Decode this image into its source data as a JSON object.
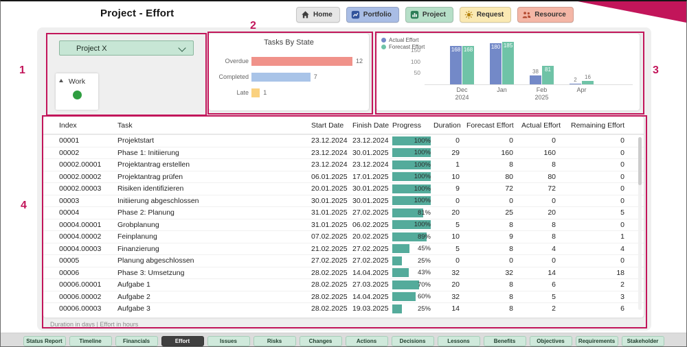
{
  "header": {
    "title": "Project - Effort",
    "ribbon_color": "#c2155a",
    "nav": [
      {
        "label": "Home",
        "icon": "home-icon",
        "bg": "#e6e6e6"
      },
      {
        "label": "Portfolio",
        "icon": "portfolio-icon",
        "bg": "#a9bde5"
      },
      {
        "label": "Project",
        "icon": "project-icon",
        "bg": "#b6dfc8"
      },
      {
        "label": "Request",
        "icon": "request-icon",
        "bg": "#fae9b3"
      },
      {
        "label": "Resource",
        "icon": "resource-icon",
        "bg": "#f4b6a6"
      }
    ]
  },
  "filters": {
    "project_selector": {
      "value": "Project X"
    },
    "work_card": {
      "label": "Work",
      "status_color": "#2f9e41"
    }
  },
  "chart_data": [
    {
      "name": "tasks-by-state",
      "type": "bar",
      "orientation": "horizontal",
      "title": "Tasks By State",
      "categories": [
        "Overdue",
        "Completed",
        "Late"
      ],
      "values": [
        12,
        7,
        1
      ],
      "colors": [
        "#f0928a",
        "#a9c4e8",
        "#fad17f"
      ],
      "xlim": [
        0,
        12
      ],
      "grid": false
    },
    {
      "name": "effort-by-month",
      "type": "bar",
      "orientation": "vertical",
      "categories": [
        {
          "label": "Dec",
          "sub": "2024"
        },
        {
          "label": "Jan",
          "sub": ""
        },
        {
          "label": "Feb",
          "sub": "2025"
        },
        {
          "label": "Apr",
          "sub": ""
        }
      ],
      "series": [
        {
          "name": "Actual Effort",
          "color": "#7389c8",
          "values": [
            168,
            180,
            38,
            2
          ]
        },
        {
          "name": "Forecast Effort",
          "color": "#6fc3a7",
          "values": [
            168,
            185,
            81,
            16
          ]
        }
      ],
      "yticks": [
        50,
        100,
        150
      ],
      "ylim": [
        0,
        200
      ],
      "legend_position": "top-left",
      "grid": false
    }
  ],
  "table": {
    "columns": [
      "Index",
      "Task",
      "Start Date",
      "Finish Date",
      "Progress",
      "Duration",
      "Forecast Effort",
      "Actual Effort",
      "Remaining Effort"
    ],
    "progress_color": "#54ab9b",
    "rows": [
      {
        "index": "00001",
        "task": "Projektstart",
        "start": "23.12.2024",
        "finish": "23.12.2024",
        "progress": 100,
        "duration": 0,
        "forecast": 0,
        "actual": 0,
        "remaining": 0
      },
      {
        "index": "00002",
        "task": "Phase 1: Initiierung",
        "start": "23.12.2024",
        "finish": "30.01.2025",
        "progress": 100,
        "duration": 29,
        "forecast": 160,
        "actual": 160,
        "remaining": 0
      },
      {
        "index": "00002.00001",
        "task": "Projektantrag erstellen",
        "start": "23.12.2024",
        "finish": "23.12.2024",
        "progress": 100,
        "duration": 1,
        "forecast": 8,
        "actual": 8,
        "remaining": 0
      },
      {
        "index": "00002.00002",
        "task": "Projektantrag prüfen",
        "start": "06.01.2025",
        "finish": "17.01.2025",
        "progress": 100,
        "duration": 10,
        "forecast": 80,
        "actual": 80,
        "remaining": 0
      },
      {
        "index": "00002.00003",
        "task": "Risiken identifizieren",
        "start": "20.01.2025",
        "finish": "30.01.2025",
        "progress": 100,
        "duration": 9,
        "forecast": 72,
        "actual": 72,
        "remaining": 0
      },
      {
        "index": "00003",
        "task": "Initiierung abgeschlossen",
        "start": "30.01.2025",
        "finish": "30.01.2025",
        "progress": 100,
        "duration": 0,
        "forecast": 0,
        "actual": 0,
        "remaining": 0
      },
      {
        "index": "00004",
        "task": "Phase 2: Planung",
        "start": "31.01.2025",
        "finish": "27.02.2025",
        "progress": 81,
        "duration": 20,
        "forecast": 25,
        "actual": 20,
        "remaining": 5
      },
      {
        "index": "00004.00001",
        "task": "Grobplanung",
        "start": "31.01.2025",
        "finish": "06.02.2025",
        "progress": 100,
        "duration": 5,
        "forecast": 8,
        "actual": 8,
        "remaining": 0
      },
      {
        "index": "00004.00002",
        "task": "Feinplanung",
        "start": "07.02.2025",
        "finish": "20.02.2025",
        "progress": 89,
        "duration": 10,
        "forecast": 9,
        "actual": 8,
        "remaining": 1
      },
      {
        "index": "00004.00003",
        "task": "Finanzierung",
        "start": "21.02.2025",
        "finish": "27.02.2025",
        "progress": 45,
        "duration": 5,
        "forecast": 8,
        "actual": 4,
        "remaining": 4
      },
      {
        "index": "00005",
        "task": "Planung abgeschlossen",
        "start": "27.02.2025",
        "finish": "27.02.2025",
        "progress": 25,
        "duration": 0,
        "forecast": 0,
        "actual": 0,
        "remaining": 0
      },
      {
        "index": "00006",
        "task": "Phase 3: Umsetzung",
        "start": "28.02.2025",
        "finish": "14.04.2025",
        "progress": 43,
        "duration": 32,
        "forecast": 32,
        "actual": 14,
        "remaining": 18
      },
      {
        "index": "00006.00001",
        "task": "Aufgabe 1",
        "start": "28.02.2025",
        "finish": "27.03.2025",
        "progress": 70,
        "duration": 20,
        "forecast": 8,
        "actual": 6,
        "remaining": 2
      },
      {
        "index": "00006.00002",
        "task": "Aufgabe 2",
        "start": "28.02.2025",
        "finish": "14.04.2025",
        "progress": 60,
        "duration": 32,
        "forecast": 8,
        "actual": 5,
        "remaining": 3
      },
      {
        "index": "00006.00003",
        "task": "Aufgabe 3",
        "start": "28.02.2025",
        "finish": "19.03.2025",
        "progress": 25,
        "duration": 14,
        "forecast": 8,
        "actual": 2,
        "remaining": 6
      }
    ],
    "footnote": "Duration in days | Effort in hours"
  },
  "tabs": {
    "active": "Effort",
    "items": [
      "Status Report",
      "Timeline",
      "Financials",
      "Effort",
      "Issues",
      "Risks",
      "Changes",
      "Actions",
      "Decisions",
      "Lessons",
      "Benefits",
      "Objectives",
      "Requirements",
      "Stakeholder"
    ]
  },
  "annotations": {
    "color": "#c2155a",
    "markers": [
      "1",
      "2",
      "3",
      "4"
    ]
  }
}
